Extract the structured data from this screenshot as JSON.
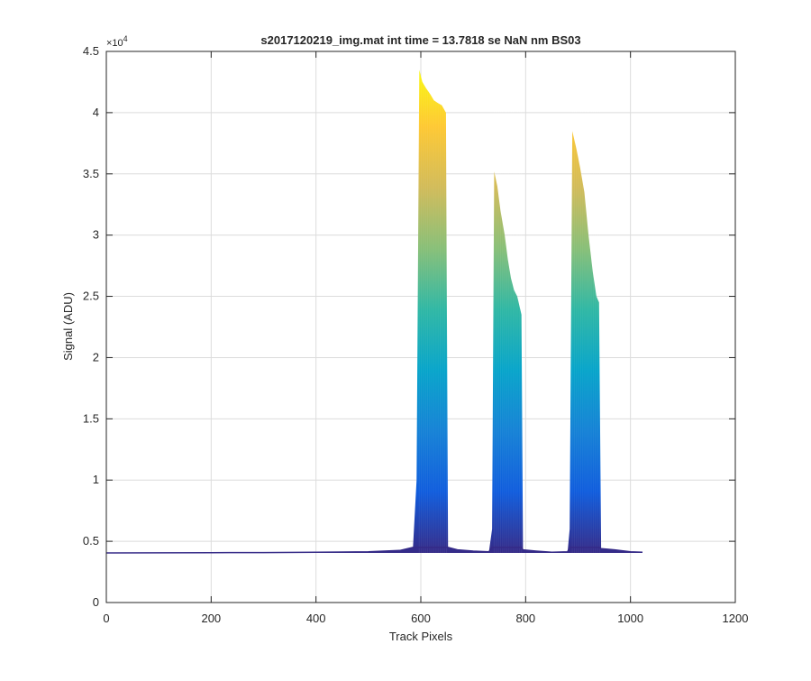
{
  "chart_data": {
    "type": "area",
    "title": "s2017120219_img.mat int time = 13.7818 se  NaN nm BS03",
    "xlabel": "Track Pixels",
    "ylabel": "Signal (ADU)",
    "xlim": [
      0,
      1200
    ],
    "ylim": [
      0,
      45000
    ],
    "xticks": [
      0,
      200,
      400,
      600,
      800,
      1000,
      1200
    ],
    "yticks": [
      0,
      5000,
      10000,
      15000,
      20000,
      25000,
      30000,
      35000,
      40000,
      45000
    ],
    "xtick_labels": [
      "0",
      "200",
      "400",
      "600",
      "800",
      "1000",
      "1200"
    ],
    "ytick_labels": [
      "0",
      "0.5",
      "1",
      "1.5",
      "2",
      "2.5",
      "3",
      "3.5",
      "4",
      "4.5"
    ],
    "y_exponent_label": "×10",
    "y_exponent_power": "4",
    "grid": true,
    "baseline": 4050,
    "colormap": "parula",
    "colormap_stops": [
      "#352a87",
      "#0f5cdd",
      "#1481d6",
      "#06a4ca",
      "#2eb7a4",
      "#87bf77",
      "#d1bb59",
      "#fec832",
      "#f9fb0e"
    ],
    "outline": [
      [
        0,
        4050
      ],
      [
        100,
        4060
      ],
      [
        200,
        4070
      ],
      [
        300,
        4080
      ],
      [
        400,
        4100
      ],
      [
        500,
        4150
      ],
      [
        560,
        4250
      ],
      [
        585,
        4500
      ],
      [
        592,
        10000
      ],
      [
        597,
        43500
      ],
      [
        603,
        42500
      ],
      [
        610,
        42000
      ],
      [
        618,
        41500
      ],
      [
        625,
        41000
      ],
      [
        632,
        40800
      ],
      [
        640,
        40600
      ],
      [
        648,
        40000
      ],
      [
        652,
        4500
      ],
      [
        670,
        4300
      ],
      [
        700,
        4200
      ],
      [
        730,
        4150
      ],
      [
        736,
        6000
      ],
      [
        740,
        35200
      ],
      [
        746,
        34000
      ],
      [
        752,
        32000
      ],
      [
        760,
        30000
      ],
      [
        766,
        28000
      ],
      [
        772,
        26500
      ],
      [
        778,
        25500
      ],
      [
        784,
        25000
      ],
      [
        792,
        23500
      ],
      [
        795,
        4300
      ],
      [
        820,
        4200
      ],
      [
        850,
        4100
      ],
      [
        880,
        4150
      ],
      [
        884,
        6000
      ],
      [
        889,
        38500
      ],
      [
        897,
        37000
      ],
      [
        904,
        35500
      ],
      [
        912,
        33500
      ],
      [
        920,
        30000
      ],
      [
        928,
        27000
      ],
      [
        935,
        25000
      ],
      [
        940,
        24500
      ],
      [
        944,
        4400
      ],
      [
        970,
        4300
      ],
      [
        1000,
        4150
      ],
      [
        1023,
        4100
      ]
    ]
  }
}
